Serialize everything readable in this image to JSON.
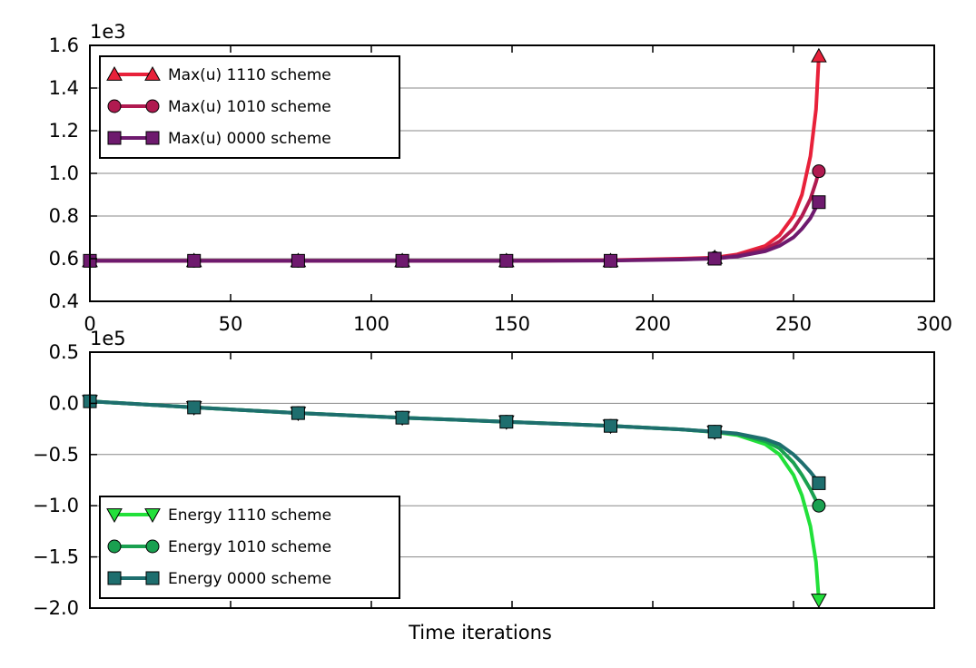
{
  "chart_data": [
    {
      "type": "line",
      "title": "",
      "xlabel": "",
      "ylabel": "",
      "scale_offset": "1e3",
      "xlim": [
        0,
        300
      ],
      "ylim": [
        0.4,
        1.6
      ],
      "xticks": [
        "0",
        "50",
        "100",
        "150",
        "200",
        "250",
        "300"
      ],
      "xtick_values": [
        0,
        50,
        100,
        150,
        200,
        250,
        300
      ],
      "yticks": [
        "0.4",
        "0.6",
        "0.8",
        "1.0",
        "1.2",
        "1.4",
        "1.6"
      ],
      "ytick_values": [
        0.4,
        0.6,
        0.8,
        1.0,
        1.2,
        1.4,
        1.6
      ],
      "grid": "horizontal",
      "legend_position": "upper-left",
      "series": [
        {
          "name": "Max(u) 1110 scheme",
          "color": "#e8213a",
          "marker": "triangle-up",
          "x": [
            0,
            37,
            74,
            111,
            148,
            185,
            210,
            222,
            230,
            240,
            245,
            250,
            253,
            256,
            258,
            259
          ],
          "y": [
            0.59,
            0.59,
            0.59,
            0.59,
            0.59,
            0.593,
            0.6,
            0.605,
            0.62,
            0.66,
            0.71,
            0.8,
            0.9,
            1.08,
            1.3,
            1.55
          ],
          "marker_x": [
            0,
            37,
            74,
            111,
            148,
            185,
            222,
            259
          ],
          "marker_y": [
            0.59,
            0.59,
            0.59,
            0.59,
            0.59,
            0.59,
            0.605,
            1.55
          ]
        },
        {
          "name": "Max(u) 1010 scheme",
          "color": "#b01a50",
          "marker": "circle",
          "x": [
            0,
            37,
            74,
            111,
            148,
            185,
            210,
            222,
            230,
            240,
            245,
            250,
            253,
            256,
            258,
            259
          ],
          "y": [
            0.59,
            0.59,
            0.59,
            0.59,
            0.59,
            0.592,
            0.598,
            0.603,
            0.615,
            0.645,
            0.68,
            0.74,
            0.8,
            0.88,
            0.96,
            1.01
          ],
          "marker_x": [
            0,
            37,
            74,
            111,
            148,
            185,
            222,
            259
          ],
          "marker_y": [
            0.59,
            0.59,
            0.59,
            0.59,
            0.59,
            0.59,
            0.603,
            1.01
          ]
        },
        {
          "name": "Max(u) 0000 scheme",
          "color": "#6e1a6e",
          "marker": "square",
          "x": [
            0,
            37,
            74,
            111,
            148,
            185,
            210,
            222,
            230,
            240,
            245,
            250,
            253,
            256,
            258,
            259
          ],
          "y": [
            0.59,
            0.59,
            0.59,
            0.59,
            0.59,
            0.591,
            0.596,
            0.6,
            0.61,
            0.635,
            0.66,
            0.7,
            0.74,
            0.79,
            0.84,
            0.865
          ],
          "marker_x": [
            0,
            37,
            74,
            111,
            148,
            185,
            222,
            259
          ],
          "marker_y": [
            0.59,
            0.59,
            0.59,
            0.59,
            0.59,
            0.59,
            0.6,
            0.865
          ]
        }
      ]
    },
    {
      "type": "line",
      "title": "",
      "xlabel": "Time iterations",
      "ylabel": "",
      "scale_offset": "1e5",
      "xlim": [
        0,
        300
      ],
      "ylim": [
        -2.0,
        0.5
      ],
      "xticks": [],
      "xtick_values": [
        0,
        50,
        100,
        150,
        200,
        250,
        300
      ],
      "yticks": [
        "0.5",
        "0.0",
        "−0.5",
        "−1.0",
        "−1.5",
        "−2.0"
      ],
      "ytick_values": [
        0.5,
        0.0,
        -0.5,
        -1.0,
        -1.5,
        -2.0
      ],
      "grid": "horizontal",
      "legend_position": "lower-left",
      "series": [
        {
          "name": "Energy 1110 scheme",
          "color": "#22e03a",
          "marker": "triangle-down",
          "x": [
            0,
            37,
            74,
            111,
            148,
            185,
            210,
            222,
            230,
            240,
            245,
            250,
            253,
            256,
            258,
            259
          ],
          "y": [
            0.02,
            -0.04,
            -0.095,
            -0.14,
            -0.18,
            -0.22,
            -0.255,
            -0.28,
            -0.31,
            -0.4,
            -0.5,
            -0.7,
            -0.9,
            -1.2,
            -1.55,
            -1.92
          ],
          "marker_x": [
            0,
            37,
            74,
            111,
            148,
            185,
            222,
            259
          ],
          "marker_y": [
            0.02,
            -0.04,
            -0.095,
            -0.14,
            -0.18,
            -0.22,
            -0.28,
            -1.92
          ]
        },
        {
          "name": "Energy 1010 scheme",
          "color": "#1aa050",
          "marker": "circle",
          "x": [
            0,
            37,
            74,
            111,
            148,
            185,
            210,
            222,
            230,
            240,
            245,
            250,
            253,
            256,
            258,
            259
          ],
          "y": [
            0.02,
            -0.04,
            -0.095,
            -0.14,
            -0.18,
            -0.22,
            -0.255,
            -0.278,
            -0.3,
            -0.37,
            -0.44,
            -0.58,
            -0.7,
            -0.84,
            -0.95,
            -1.0
          ],
          "marker_x": [
            0,
            37,
            74,
            111,
            148,
            185,
            222,
            259
          ],
          "marker_y": [
            0.02,
            -0.04,
            -0.095,
            -0.14,
            -0.18,
            -0.22,
            -0.278,
            -1.0
          ]
        },
        {
          "name": "Energy 0000 scheme",
          "color": "#1e6e6e",
          "marker": "square",
          "x": [
            0,
            37,
            74,
            111,
            148,
            185,
            210,
            222,
            230,
            240,
            245,
            250,
            253,
            256,
            258,
            259
          ],
          "y": [
            0.02,
            -0.04,
            -0.095,
            -0.14,
            -0.18,
            -0.22,
            -0.255,
            -0.277,
            -0.295,
            -0.35,
            -0.4,
            -0.5,
            -0.58,
            -0.67,
            -0.74,
            -0.78
          ],
          "marker_x": [
            0,
            37,
            74,
            111,
            148,
            185,
            222,
            259
          ],
          "marker_y": [
            0.02,
            -0.04,
            -0.095,
            -0.14,
            -0.18,
            -0.22,
            -0.277,
            -0.78
          ]
        }
      ]
    }
  ]
}
